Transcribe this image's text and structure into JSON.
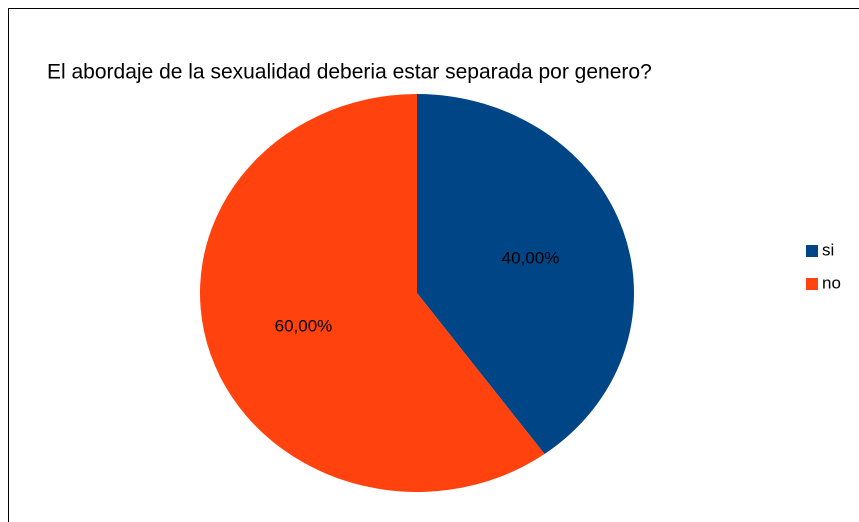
{
  "chart_data": {
    "type": "pie",
    "title": "El abordaje de la sexualidad deberia estar separada por genero?",
    "categories": [
      "si",
      "no"
    ],
    "values": [
      40,
      60
    ],
    "value_labels": [
      "40,00%",
      "60,00%"
    ],
    "colors": [
      "#004586",
      "#ff420e"
    ],
    "legend": "right"
  }
}
